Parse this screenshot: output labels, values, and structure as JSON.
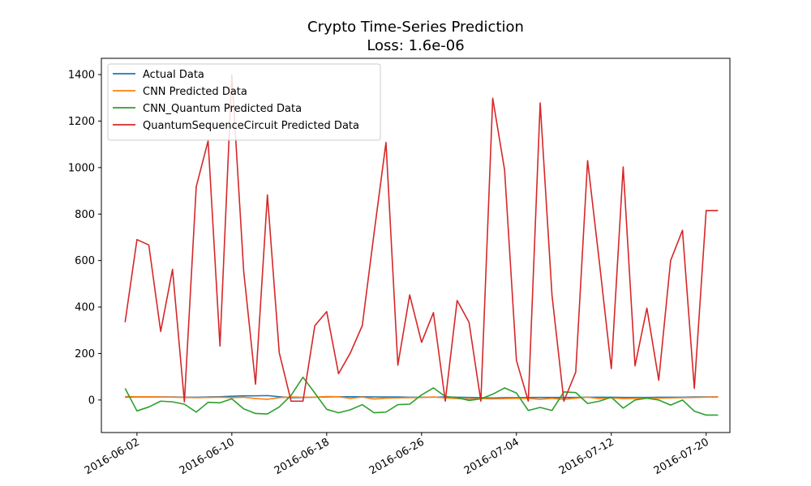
{
  "chart_data": {
    "type": "line",
    "title": "Crypto Time-Series Prediction",
    "subtitle": "Loss: 1.6e-06",
    "xlabel": "",
    "ylabel": "",
    "x": [
      "2016-06-01",
      "2016-06-02",
      "2016-06-03",
      "2016-06-04",
      "2016-06-05",
      "2016-06-06",
      "2016-06-07",
      "2016-06-08",
      "2016-06-09",
      "2016-06-10",
      "2016-06-11",
      "2016-06-12",
      "2016-06-13",
      "2016-06-14",
      "2016-06-15",
      "2016-06-16",
      "2016-06-17",
      "2016-06-18",
      "2016-06-19",
      "2016-06-20",
      "2016-06-21",
      "2016-06-22",
      "2016-06-23",
      "2016-06-24",
      "2016-06-25",
      "2016-06-26",
      "2016-06-27",
      "2016-06-28",
      "2016-06-29",
      "2016-06-30",
      "2016-07-01",
      "2016-07-02",
      "2016-07-03",
      "2016-07-04",
      "2016-07-05",
      "2016-07-06",
      "2016-07-07",
      "2016-07-08",
      "2016-07-09",
      "2016-07-10",
      "2016-07-11",
      "2016-07-12",
      "2016-07-13",
      "2016-07-14",
      "2016-07-15",
      "2016-07-16",
      "2016-07-17",
      "2016-07-18",
      "2016-07-19",
      "2016-07-20",
      "2016-07-21"
    ],
    "xlim": [
      "2016-05-30",
      "2016-07-22"
    ],
    "ylim": [
      -140,
      1470
    ],
    "x_ticks": [
      "2016-06-02",
      "2016-06-10",
      "2016-06-18",
      "2016-06-26",
      "2016-07-04",
      "2016-07-12",
      "2016-07-20"
    ],
    "y_ticks": [
      0,
      200,
      400,
      600,
      800,
      1000,
      1200,
      1400
    ],
    "grid": false,
    "legend_position": "upper-left",
    "series": [
      {
        "name": "Actual Data",
        "color": "#1f77b4",
        "values": [
          12,
          13,
          13,
          13,
          13,
          12,
          12,
          13,
          14,
          16,
          18,
          18,
          19,
          14,
          10,
          11,
          12,
          13,
          14,
          14,
          14,
          13,
          13,
          13,
          12,
          12,
          12,
          13,
          12,
          11,
          10,
          9,
          10,
          10,
          11,
          11,
          11,
          11,
          11,
          12,
          12,
          12,
          11,
          11,
          11,
          12,
          12,
          12,
          13,
          13,
          13
        ]
      },
      {
        "name": "CNN Predicted Data",
        "color": "#ff7f0e",
        "values": [
          15,
          14,
          14,
          13,
          12,
          11,
          10,
          11,
          12,
          10,
          12,
          6,
          3,
          10,
          13,
          12,
          12,
          15,
          14,
          7,
          13,
          4,
          8,
          9,
          10,
          11,
          13,
          9,
          6,
          4,
          6,
          5,
          6,
          7,
          7,
          3,
          7,
          3,
          8,
          12,
          6,
          9,
          6,
          7,
          8,
          8,
          9,
          10,
          11,
          12,
          14
        ]
      },
      {
        "name": "CNN_Quantum Predicted Data",
        "color": "#2ca02c",
        "values": [
          50,
          -47,
          -30,
          -5,
          -8,
          -18,
          -52,
          -10,
          -12,
          5,
          -38,
          -58,
          -60,
          -30,
          20,
          98,
          30,
          -40,
          -55,
          -42,
          -20,
          -55,
          -52,
          -20,
          -18,
          22,
          52,
          15,
          10,
          -2,
          5,
          25,
          52,
          30,
          -45,
          -32,
          -45,
          35,
          32,
          -15,
          -5,
          12,
          -35,
          0,
          8,
          0,
          -22,
          0,
          -48,
          -65,
          -65
        ]
      },
      {
        "name": "QuantumSequenceCircuit Predicted Data",
        "color": "#d62728",
        "values": [
          335,
          690,
          667,
          295,
          562,
          -8,
          918,
          1115,
          232,
          1400,
          555,
          68,
          882,
          203,
          -5,
          -5,
          320,
          380,
          113,
          203,
          320,
          720,
          1108,
          150,
          452,
          248,
          376,
          -5,
          428,
          335,
          -5,
          1298,
          990,
          170,
          -5,
          1278,
          450,
          -5,
          120,
          1030,
          590,
          135,
          1003,
          147,
          395,
          85,
          600,
          730,
          50,
          815,
          815
        ]
      }
    ]
  }
}
